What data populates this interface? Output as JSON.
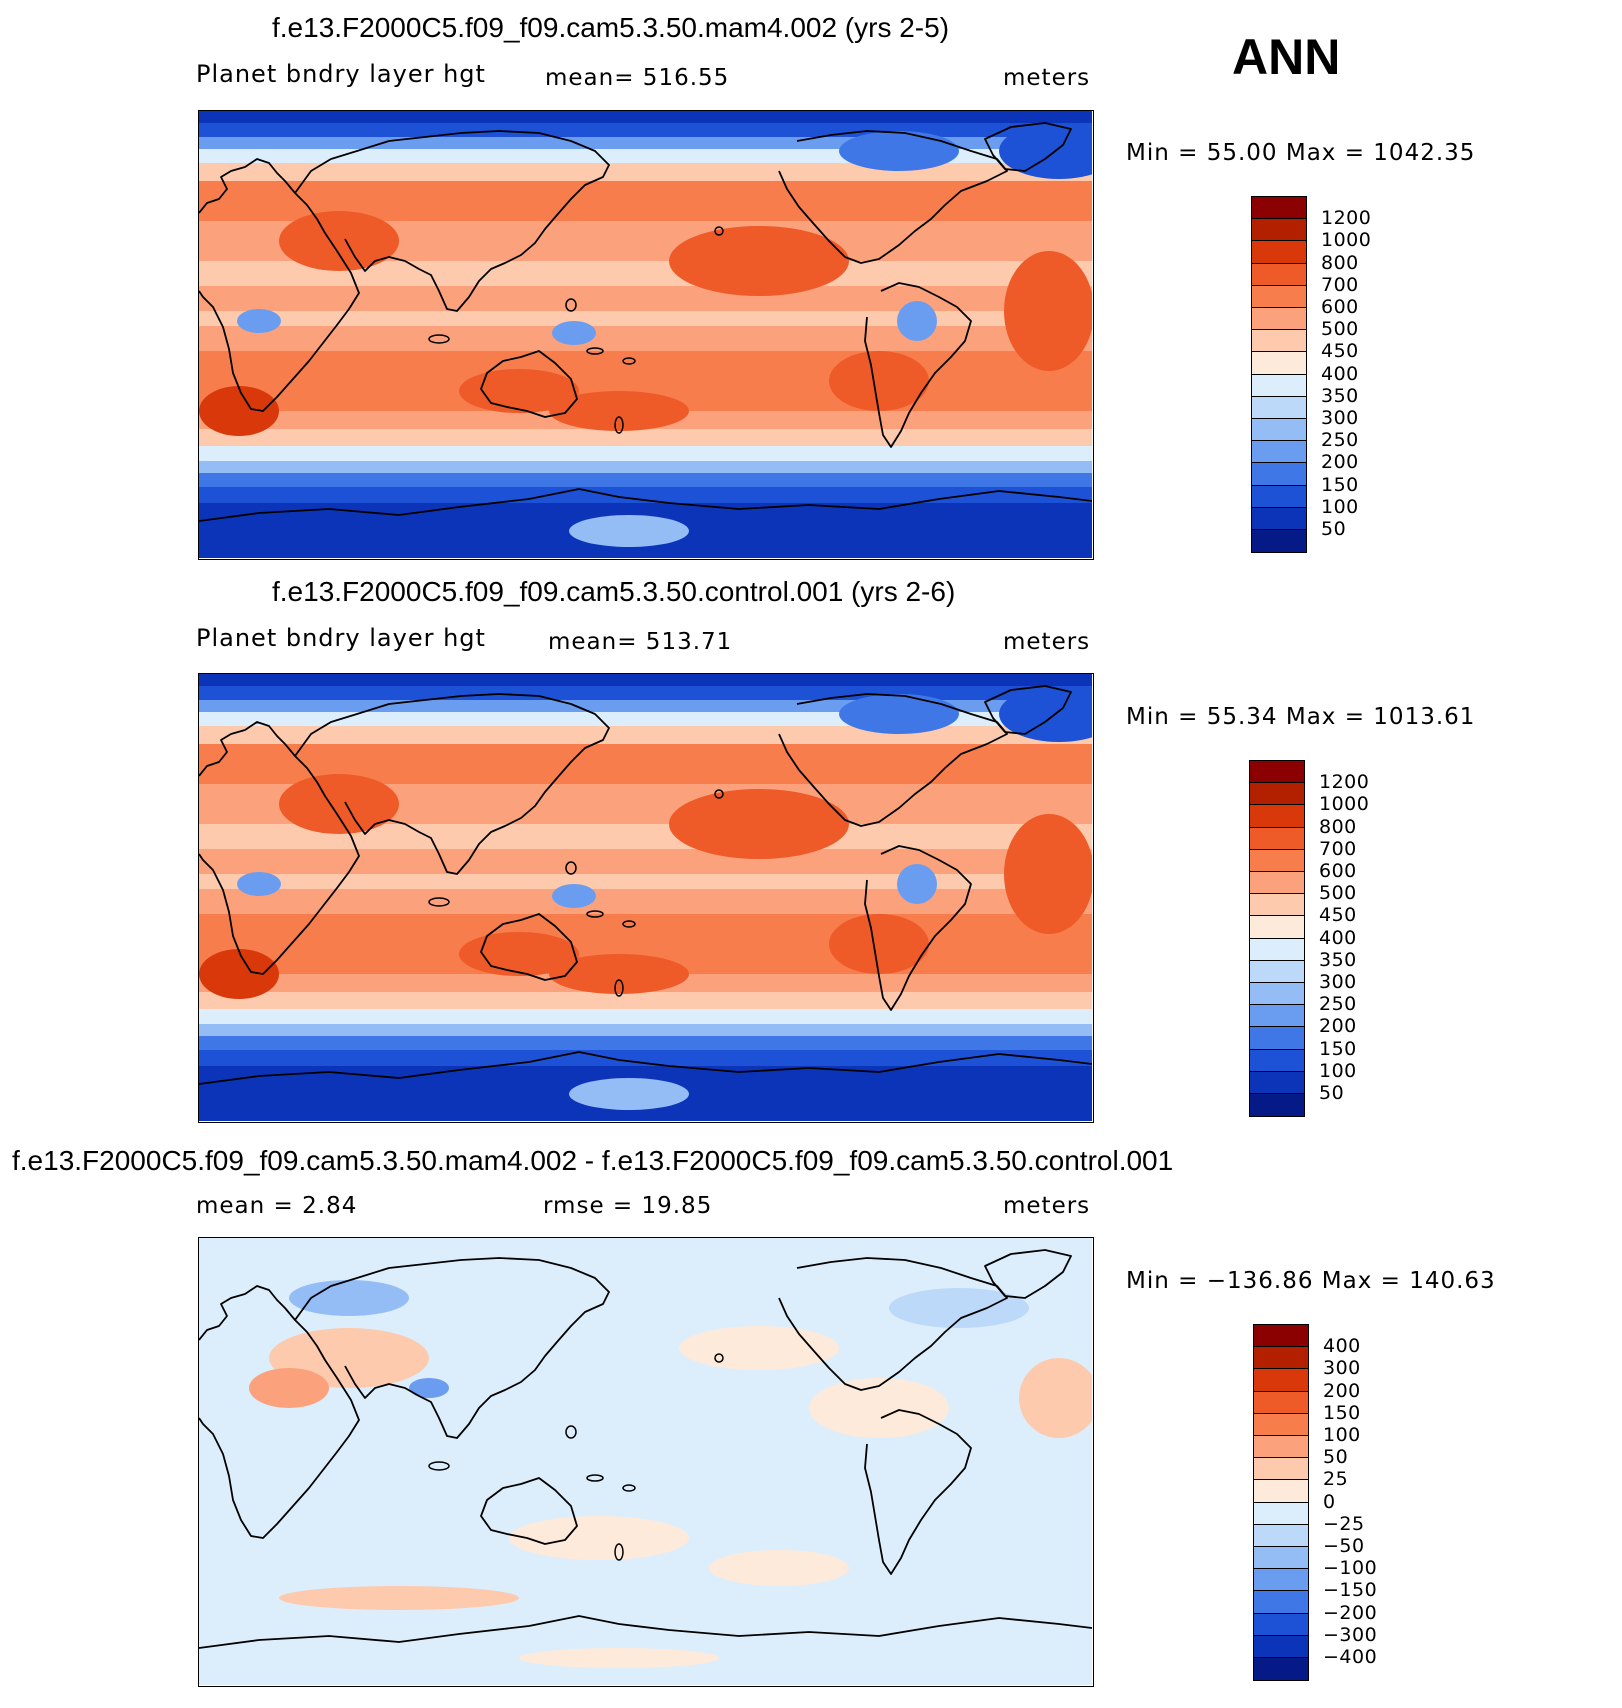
{
  "season_label": "ANN",
  "chart_data": [
    {
      "type": "heatmap",
      "title": "f.e13.F2000C5.f09_f09.cam5.3.50.mam4.002 (yrs 2-5)",
      "variable_label": "Planet bndry layer hgt",
      "center_stat": "mean=  516.55",
      "units": "meters",
      "minmax": "Min =    55.00  Max  =  1042.35",
      "mean": 516.55,
      "min": 55.0,
      "max": 1042.35,
      "colorbar_levels": [
        "1200",
        "1000",
        "800",
        "700",
        "600",
        "500",
        "450",
        "400",
        "350",
        "300",
        "250",
        "200",
        "150",
        "100",
        "50"
      ],
      "colorbar_colors": [
        "#8b0000",
        "#b32000",
        "#d8380a",
        "#ee5a28",
        "#f77e4c",
        "#fba27c",
        "#fdcaae",
        "#feeada",
        "#dceefb",
        "#bcd9fa",
        "#94bdf6",
        "#6a9df0",
        "#3f78e6",
        "#1d52d6",
        "#0b34b8",
        "#051a86"
      ]
    },
    {
      "type": "heatmap",
      "title": "f.e13.F2000C5.f09_f09.cam5.3.50.control.001 (yrs 2-6)",
      "variable_label": "Planet bndry layer hgt",
      "center_stat": "mean=  513.71",
      "units": "meters",
      "minmax": "Min =    55.34  Max  =  1013.61",
      "mean": 513.71,
      "min": 55.34,
      "max": 1013.61,
      "colorbar_levels": [
        "1200",
        "1000",
        "800",
        "700",
        "600",
        "500",
        "450",
        "400",
        "350",
        "300",
        "250",
        "200",
        "150",
        "100",
        "50"
      ],
      "colorbar_colors": [
        "#8b0000",
        "#b32000",
        "#d8380a",
        "#ee5a28",
        "#f77e4c",
        "#fba27c",
        "#fdcaae",
        "#feeada",
        "#dceefb",
        "#bcd9fa",
        "#94bdf6",
        "#6a9df0",
        "#3f78e6",
        "#1d52d6",
        "#0b34b8",
        "#051a86"
      ]
    },
    {
      "type": "heatmap",
      "title": "f.e13.F2000C5.f09_f09.cam5.3.50.mam4.002 - f.e13.F2000C5.f09_f09.cam5.3.50.control.001",
      "left_stat": "mean =    2.84",
      "center_stat": "rmse =    19.85",
      "units": "meters",
      "minmax": "Min = −136.86  Max  =  140.63",
      "mean": 2.84,
      "rmse": 19.85,
      "min": -136.86,
      "max": 140.63,
      "colorbar_levels": [
        "400",
        "300",
        "200",
        "150",
        "100",
        "50",
        "25",
        "0",
        "−25",
        "−50",
        "−100",
        "−150",
        "−200",
        "−300",
        "−400"
      ],
      "colorbar_colors": [
        "#8b0000",
        "#b32000",
        "#d8380a",
        "#ee5a28",
        "#f77e4c",
        "#fba27c",
        "#fdcaae",
        "#feeada",
        "#dceefb",
        "#bcd9fa",
        "#94bdf6",
        "#6a9df0",
        "#3f78e6",
        "#1d52d6",
        "#0b34b8",
        "#051a86"
      ]
    }
  ]
}
